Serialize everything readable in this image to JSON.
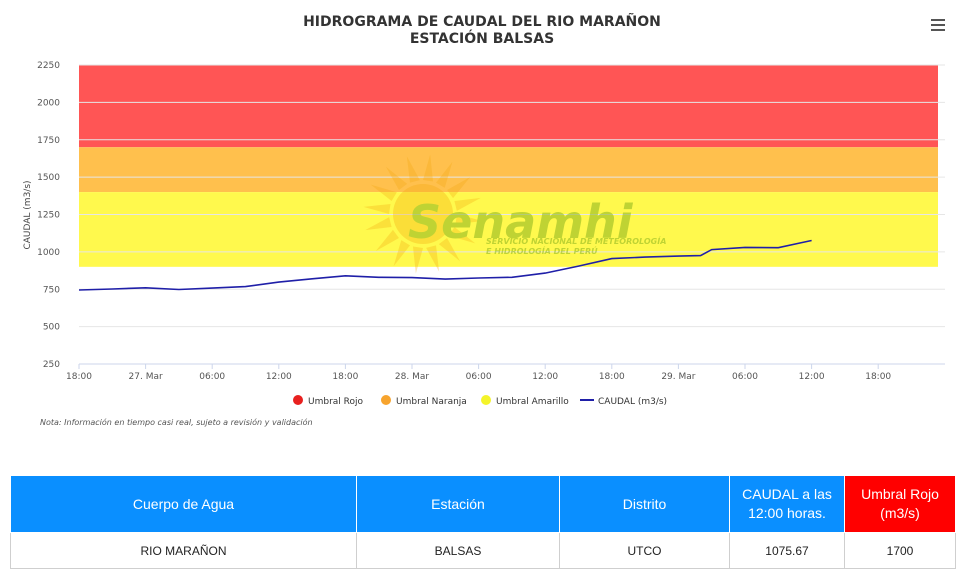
{
  "header": {
    "title_line1": "HIDROGRAMA DE CAUDAL DEL RIO MARAÑON",
    "title_line2": "ESTACIÓN BALSAS",
    "menu_icon": "hamburger-menu-icon"
  },
  "watermark": {
    "brand": "Senamhi",
    "line1": "SERVICIO NACIONAL DE METEOROLOGÍA",
    "line2": "E HIDROLOGÍA DEL PERÚ"
  },
  "note": "Nota: Información en tiempo casi real, sujeto a revisión y validación",
  "chart_data": {
    "type": "line",
    "ylabel": "CAUDAL (m3/s)",
    "ylim": [
      250,
      2250
    ],
    "yticks": [
      250,
      500,
      750,
      1000,
      1250,
      1500,
      1750,
      2000,
      2250
    ],
    "x_start": "26 Mar 18:00",
    "x_end": "29 Mar 21:00",
    "xticks": [
      "18:00",
      "27. Mar",
      "06:00",
      "12:00",
      "18:00",
      "28. Mar",
      "06:00",
      "12:00",
      "18:00",
      "29. Mar",
      "06:00",
      "12:00",
      "18:00"
    ],
    "bands": [
      {
        "name": "Umbral Rojo",
        "from": 1700,
        "to": 2250,
        "color": "#FF5555"
      },
      {
        "name": "Umbral Naranja",
        "from": 1400,
        "to": 1700,
        "color": "#FFC04D"
      },
      {
        "name": "Umbral Amarillo",
        "from": 900,
        "to": 1400,
        "color": "#FFF94D"
      }
    ],
    "legend": [
      {
        "name": "Umbral Rojo",
        "color": "#E8201F",
        "symbol": "dot"
      },
      {
        "name": "Umbral Naranja",
        "color": "#F7A42E",
        "symbol": "dot"
      },
      {
        "name": "Umbral Amarillo",
        "color": "#F4F42A",
        "symbol": "dot"
      },
      {
        "name": "CAUDAL (m3/s)",
        "color": "#1F1FA8",
        "symbol": "line"
      }
    ],
    "series": [
      {
        "name": "CAUDAL (m3/s)",
        "color": "#1F1FA8",
        "x": [
          "26 Mar 18:00",
          "26 Mar 21:00",
          "27 Mar 00:00",
          "27 Mar 03:00",
          "27 Mar 06:00",
          "27 Mar 09:00",
          "27 Mar 12:00",
          "27 Mar 15:00",
          "27 Mar 18:00",
          "27 Mar 21:00",
          "28 Mar 00:00",
          "28 Mar 03:00",
          "28 Mar 06:00",
          "28 Mar 09:00",
          "28 Mar 12:00",
          "28 Mar 15:00",
          "28 Mar 18:00",
          "28 Mar 21:00",
          "29 Mar 00:00",
          "29 Mar 02:00",
          "29 Mar 03:00",
          "29 Mar 06:00",
          "29 Mar 09:00",
          "29 Mar 11:00",
          "29 Mar 12:00"
        ],
        "values": [
          745,
          752,
          760,
          748,
          758,
          768,
          798,
          820,
          840,
          830,
          828,
          818,
          825,
          830,
          858,
          905,
          955,
          965,
          972,
          975,
          1015,
          1030,
          1028,
          1060,
          1076
        ]
      }
    ]
  },
  "table": {
    "headers": [
      "Cuerpo de Agua",
      "Estación",
      "Distrito",
      "CAUDAL a las 12:00 horas.",
      "Umbral Rojo (m3/s)"
    ],
    "row": [
      "RIO MARAÑON",
      "BALSAS",
      "UTCO",
      "1075.67",
      "1700"
    ]
  }
}
